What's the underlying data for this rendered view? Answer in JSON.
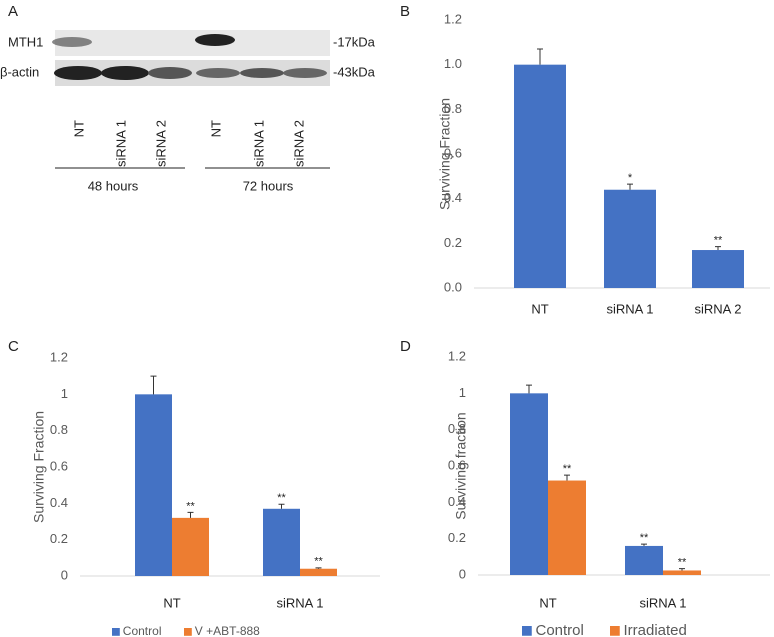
{
  "blot": {
    "label": "A",
    "rows": [
      {
        "name": "MTH1",
        "marker": "-17kDa"
      },
      {
        "name": "β-actin",
        "marker": "-43kDa"
      }
    ],
    "lanes": [
      "NT",
      "siRNA 1",
      "siRNA 2",
      "NT",
      "siRNA 1",
      "siRNA 2"
    ],
    "groups": [
      "48 hours",
      "72 hours"
    ]
  },
  "chart_data": [
    {
      "type": "bar",
      "label": "B",
      "ylabel": "Surviving Fraction",
      "categories": [
        "NT",
        "siRNA 1",
        "siRNA 2"
      ],
      "series": [
        {
          "color": "#4472c4",
          "values": [
            1.0,
            0.44,
            0.17
          ],
          "errors": [
            0.07,
            0.025,
            0.015
          ],
          "annotations": [
            null,
            "*",
            "**"
          ]
        }
      ],
      "ylim": [
        0,
        1.2
      ],
      "yticks": [
        {
          "value": 0,
          "label": "0.0"
        },
        {
          "value": 0.2,
          "label": "0.2"
        },
        {
          "value": 0.4,
          "label": "0.4"
        },
        {
          "value": 0.6,
          "label": "0.6"
        },
        {
          "value": 0.8,
          "label": "0.8"
        },
        {
          "value": 1,
          "label": "1.0"
        },
        {
          "value": 1.2,
          "label": "1.2"
        }
      ]
    },
    {
      "type": "bar",
      "label": "C",
      "ylabel": "Surviving  Fraction",
      "categories": [
        "NT",
        "siRNA 1"
      ],
      "series": [
        {
          "name": "Control",
          "color": "#4472c4",
          "values": [
            1,
            0.37
          ],
          "errors": [
            0.1,
            0.025
          ],
          "annotations": [
            null,
            "**"
          ]
        },
        {
          "name": "V +ABT-888",
          "color": "#ed7d31",
          "values": [
            0.32,
            0.04
          ],
          "errors": [
            0.03,
            0.005
          ],
          "annotations": [
            "**",
            "**"
          ]
        }
      ],
      "ylim": [
        0,
        1.2
      ],
      "yticks": [
        0,
        0.2,
        0.4,
        0.6,
        0.8,
        1,
        1.2
      ],
      "legend": "bottom"
    },
    {
      "type": "bar",
      "label": "D",
      "ylabel": "Surviving  fraction",
      "categories": [
        "NT",
        "siRNA 1"
      ],
      "series": [
        {
          "name": "Control",
          "color": "#4472c4",
          "values": [
            1,
            0.16
          ],
          "errors": [
            0.045,
            0.01
          ],
          "annotations": [
            null,
            "**"
          ]
        },
        {
          "name": "Irradiated",
          "color": "#ed7d31",
          "values": [
            0.52,
            0.025
          ],
          "errors": [
            0.03,
            0.01
          ],
          "annotations": [
            "**",
            "**"
          ]
        }
      ],
      "ylim": [
        0,
        1.2
      ],
      "yticks": [
        0,
        0.2,
        0.4,
        0.6,
        0.8,
        1,
        1.2
      ],
      "legend": "bottom"
    }
  ]
}
